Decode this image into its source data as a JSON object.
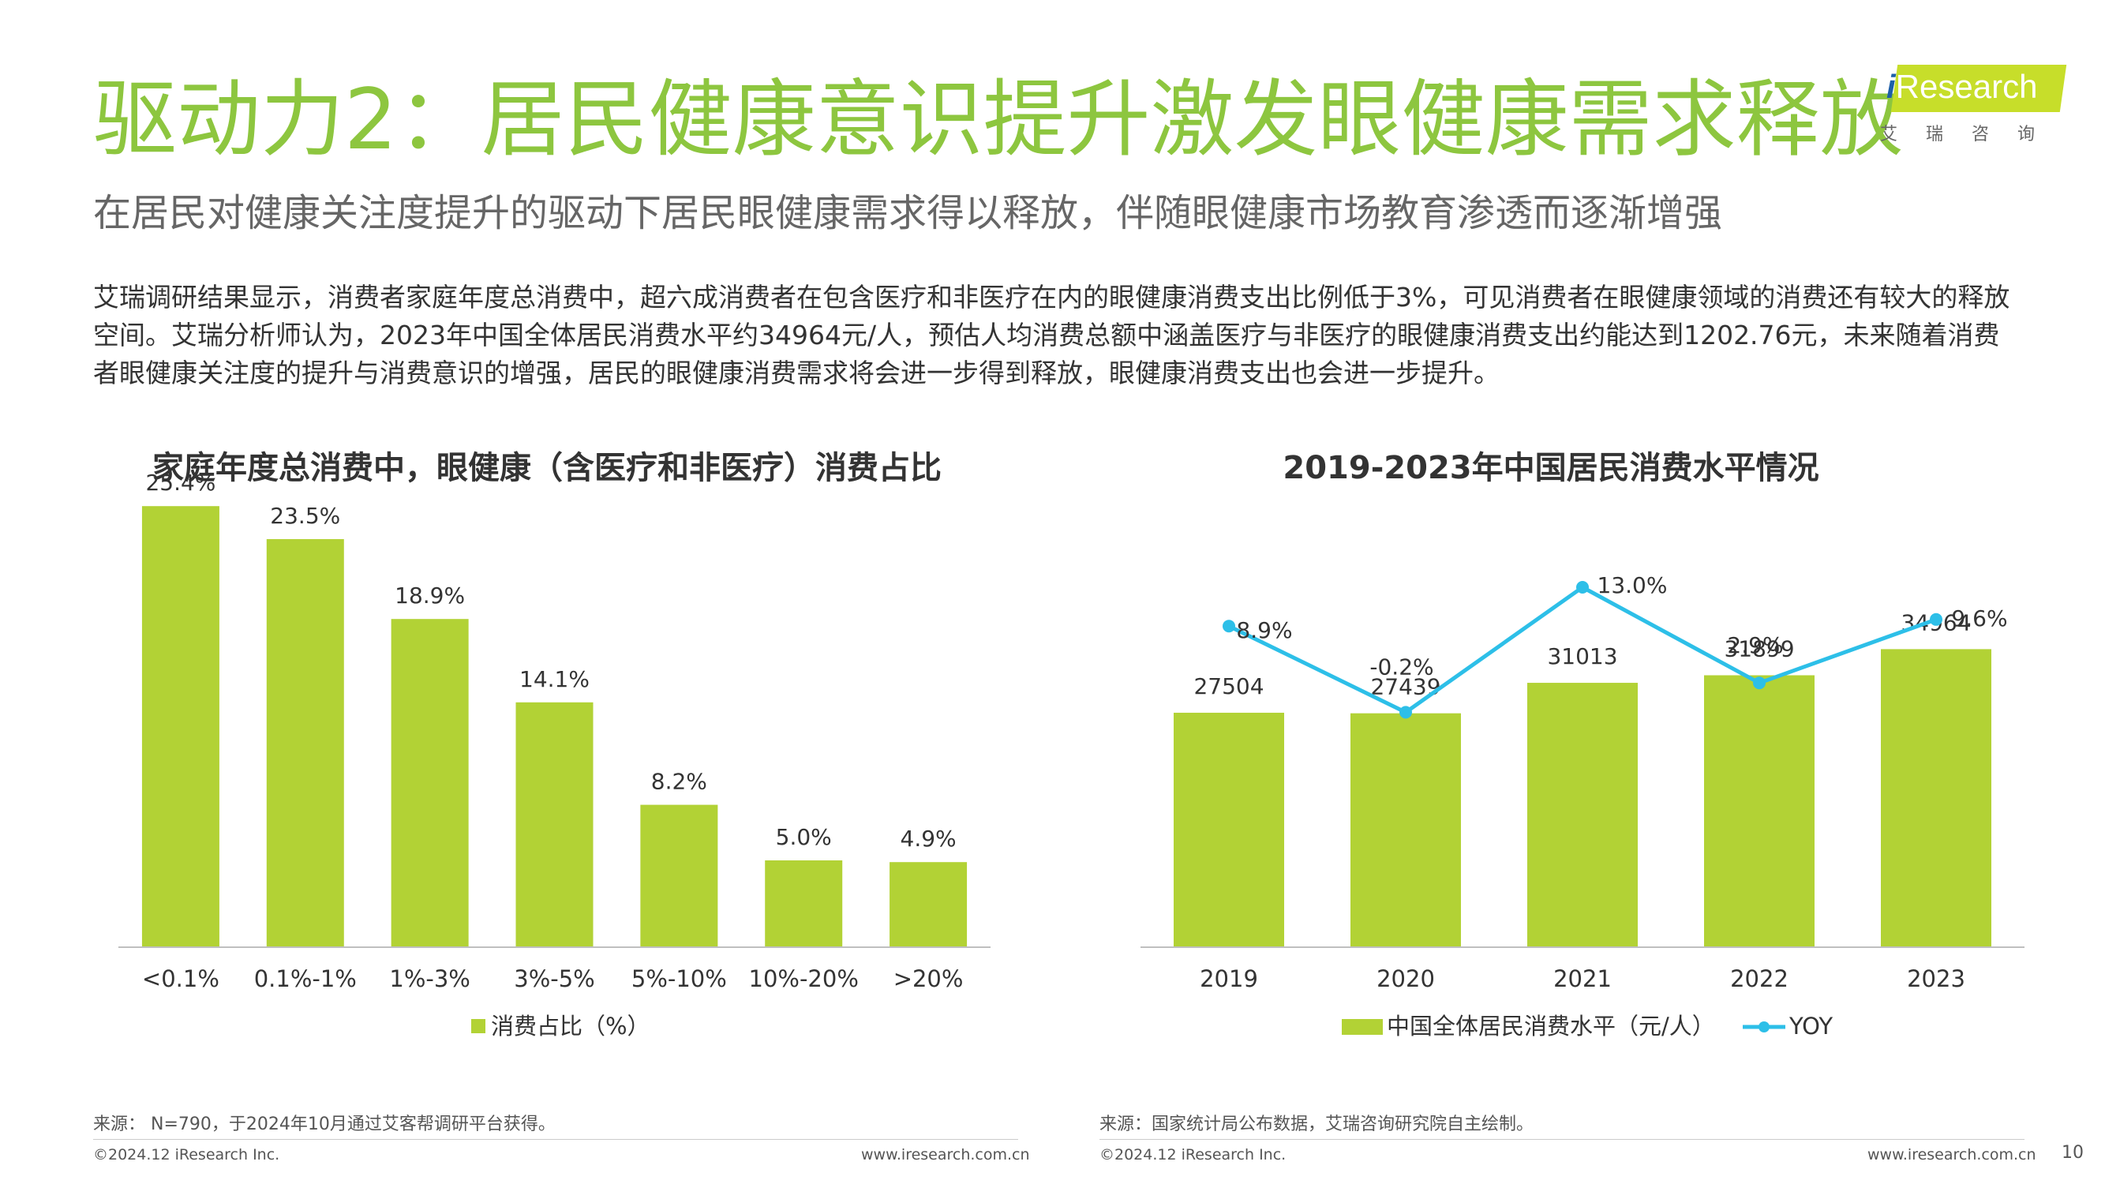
{
  "header": {
    "title": "驱动力2：居民健康意识提升激发眼健康需求释放",
    "subtitle": "在居民对健康关注度提升的驱动下居民眼健康需求得以释放，伴随眼健康市场教育渗透而逐渐增强"
  },
  "logo": {
    "brand_prefix": "i",
    "brand_rest": "Research",
    "brand_cn": "艾瑞咨询",
    "accent_color": "#c7de2a"
  },
  "body_text": "艾瑞调研结果显示，消费者家庭年度总消费中，超六成消费者在包含医疗和非医疗在内的眼健康消费支出比例低于3%，可见消费者在眼健康领域的消费还有较大的释放空间。艾瑞分析师认为，2023年中国全体居民消费水平约34964元/人，预估人均消费总额中涵盖医疗与非医疗的眼健康消费支出约能达到1202.76元，未来随着消费者眼健康关注度的提升与消费意识的增强，居民的眼健康消费需求将会进一步得到释放，眼健康消费支出也会进一步提升。",
  "colors": {
    "title_green": "#8dc63f",
    "bar_green": "#b2d235",
    "line_blue": "#2dbfe8"
  },
  "chart_data": [
    {
      "type": "bar",
      "title": "家庭年度总消费中，眼健康（含医疗和非医疗）消费占比",
      "categories": [
        "<0.1%",
        "0.1%-1%",
        "1%-3%",
        "3%-5%",
        "5%-10%",
        "10%-20%",
        ">20%"
      ],
      "values": [
        25.4,
        23.5,
        18.9,
        14.1,
        8.2,
        5.0,
        4.9
      ],
      "data_labels": [
        "25.4%",
        "23.5%",
        "18.9%",
        "14.1%",
        "8.2%",
        "5.0%",
        "4.9%"
      ],
      "series_name": "消费占比（%）",
      "ylim": [
        0,
        30
      ],
      "grid": false,
      "legend": "bottom"
    },
    {
      "type": "bar+line",
      "title": "2019-2023年中国居民消费水平情况",
      "categories": [
        "2019",
        "2020",
        "2021",
        "2022",
        "2023"
      ],
      "bar_series": {
        "name": "中国全体居民消费水平（元/人）",
        "values": [
          27504,
          27439,
          31013,
          31899,
          34964
        ],
        "data_labels": [
          "27504",
          "27439",
          "31013",
          "31899",
          "34964"
        ]
      },
      "line_series": {
        "name": "YOY",
        "values": [
          8.9,
          -0.2,
          13.0,
          2.9,
          9.6
        ],
        "data_labels": [
          "8.9%",
          "-0.2%",
          "13.0%",
          "2.9%",
          "9.6%"
        ]
      },
      "bar_ylim": [
        0,
        60000
      ],
      "line_ylim": [
        -25,
        15
      ],
      "grid": false,
      "legend": "bottom"
    }
  ],
  "sources": {
    "left": "来源：  N=790，于2024年10月通过艾客帮调研平台获得。",
    "right": "来源：国家统计局公布数据，艾瑞咨询研究院自主绘制。"
  },
  "footer": {
    "copyright": "©2024.12 iResearch Inc.",
    "website": "www.iresearch.com.cn",
    "page_number": "10"
  }
}
